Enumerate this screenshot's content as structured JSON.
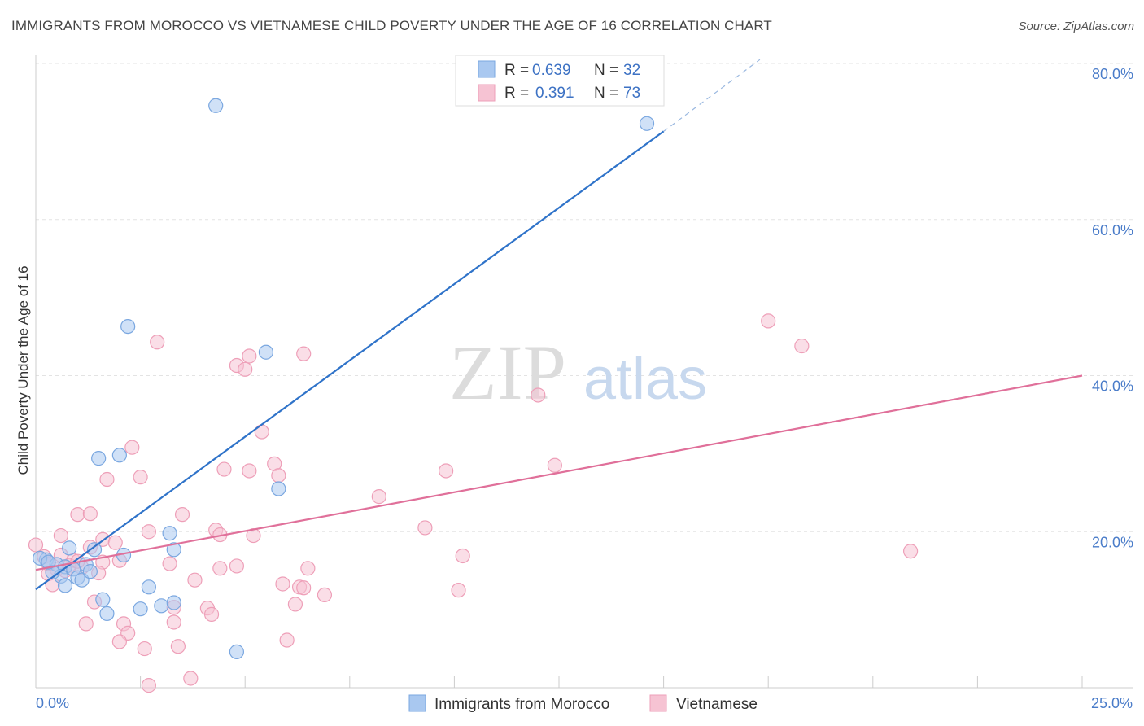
{
  "chart_data": {
    "type": "scatter",
    "title": "IMMIGRANTS FROM MOROCCO VS VIETNAMESE CHILD POVERTY UNDER THE AGE OF 16 CORRELATION CHART",
    "source": "Source: ZipAtlas.com",
    "ylabel": "Child Poverty Under the Age of 16",
    "xlabel": "",
    "xlim": [
      0,
      25
    ],
    "ylim": [
      0,
      80
    ],
    "x_tick_labels": [
      "0.0%",
      "25.0%"
    ],
    "y_ticks": [
      20,
      40,
      60,
      80
    ],
    "y_tick_labels": [
      "20.0%",
      "40.0%",
      "60.0%",
      "80.0%"
    ],
    "grid": true,
    "watermark": [
      "ZIP",
      "atlas"
    ],
    "legend": {
      "entries": [
        {
          "r_label": "R = ",
          "r_value": "0.639",
          "n_label": "N = ",
          "n_value": "32"
        },
        {
          "r_label": "R = ",
          "r_value": "0.391",
          "n_label": "N = ",
          "n_value": "73"
        }
      ]
    },
    "series": [
      {
        "name": "Immigrants from Morocco",
        "color": "#a9c8f0",
        "stroke": "#7aa7e0",
        "line_color": "#2f73c9",
        "trend": {
          "x0": 0,
          "y0": 12.6,
          "x1": 15,
          "y1": 71.3,
          "x_ext": 17.3,
          "y_ext": 80.5
        },
        "points": [
          [
            4.3,
            74.6
          ],
          [
            14.6,
            72.3
          ],
          [
            2.2,
            46.3
          ],
          [
            5.5,
            43.0
          ],
          [
            2.0,
            29.8
          ],
          [
            1.5,
            29.4
          ],
          [
            5.8,
            25.5
          ],
          [
            0.8,
            17.9
          ],
          [
            1.4,
            17.7
          ],
          [
            2.1,
            17.0
          ],
          [
            3.2,
            19.8
          ],
          [
            3.3,
            17.7
          ],
          [
            0.25,
            16.4
          ],
          [
            0.5,
            15.8
          ],
          [
            0.7,
            15.5
          ],
          [
            0.9,
            15.2
          ],
          [
            1.2,
            15.8
          ],
          [
            0.6,
            14.3
          ],
          [
            1.0,
            14.1
          ],
          [
            1.1,
            13.8
          ],
          [
            0.4,
            14.8
          ],
          [
            0.7,
            13.1
          ],
          [
            2.7,
            12.9
          ],
          [
            1.6,
            11.3
          ],
          [
            1.7,
            9.5
          ],
          [
            3.0,
            10.5
          ],
          [
            3.3,
            10.9
          ],
          [
            2.5,
            10.1
          ],
          [
            4.8,
            4.6
          ],
          [
            0.1,
            16.6
          ],
          [
            0.3,
            16.1
          ],
          [
            1.3,
            14.9
          ]
        ]
      },
      {
        "name": "Vietnamese",
        "color": "#f6c3d3",
        "stroke": "#ee9fb8",
        "line_color": "#e0709a",
        "trend": {
          "x0": 0,
          "y0": 15.1,
          "x1": 25,
          "y1": 40.0
        },
        "points": [
          [
            17.5,
            47.0
          ],
          [
            18.3,
            43.8
          ],
          [
            2.9,
            44.3
          ],
          [
            6.4,
            42.8
          ],
          [
            4.8,
            41.3
          ],
          [
            5.0,
            40.8
          ],
          [
            5.1,
            42.5
          ],
          [
            12.0,
            37.5
          ],
          [
            5.4,
            32.8
          ],
          [
            2.3,
            30.8
          ],
          [
            12.4,
            28.5
          ],
          [
            9.8,
            27.8
          ],
          [
            4.5,
            28.0
          ],
          [
            5.1,
            27.8
          ],
          [
            5.7,
            28.7
          ],
          [
            5.8,
            27.2
          ],
          [
            2.5,
            27.0
          ],
          [
            1.7,
            26.7
          ],
          [
            8.2,
            24.5
          ],
          [
            1.0,
            22.2
          ],
          [
            1.3,
            22.3
          ],
          [
            3.5,
            22.2
          ],
          [
            9.3,
            20.5
          ],
          [
            2.7,
            20.0
          ],
          [
            4.3,
            20.2
          ],
          [
            4.4,
            19.6
          ],
          [
            5.2,
            19.5
          ],
          [
            0.6,
            19.5
          ],
          [
            1.6,
            19.0
          ],
          [
            1.9,
            18.6
          ],
          [
            1.3,
            18.0
          ],
          [
            0.0,
            18.3
          ],
          [
            20.9,
            17.5
          ],
          [
            10.2,
            16.9
          ],
          [
            3.2,
            15.9
          ],
          [
            0.9,
            16.3
          ],
          [
            1.6,
            16.1
          ],
          [
            2.0,
            16.3
          ],
          [
            0.5,
            15.2
          ],
          [
            0.8,
            15.7
          ],
          [
            0.3,
            14.6
          ],
          [
            4.4,
            15.3
          ],
          [
            4.8,
            15.6
          ],
          [
            6.5,
            15.3
          ],
          [
            1.1,
            15.4
          ],
          [
            1.5,
            14.7
          ],
          [
            0.4,
            13.2
          ],
          [
            3.8,
            13.8
          ],
          [
            5.9,
            13.3
          ],
          [
            6.3,
            12.9
          ],
          [
            6.4,
            12.8
          ],
          [
            6.9,
            11.9
          ],
          [
            10.1,
            12.5
          ],
          [
            1.4,
            11.0
          ],
          [
            3.3,
            10.3
          ],
          [
            4.1,
            10.2
          ],
          [
            4.2,
            9.4
          ],
          [
            6.2,
            10.7
          ],
          [
            1.2,
            8.2
          ],
          [
            2.1,
            8.2
          ],
          [
            3.3,
            8.4
          ],
          [
            2.2,
            7.0
          ],
          [
            6.0,
            6.1
          ],
          [
            2.0,
            5.9
          ],
          [
            2.6,
            5.0
          ],
          [
            3.4,
            5.3
          ],
          [
            3.7,
            1.2
          ],
          [
            2.7,
            0.3
          ],
          [
            0.2,
            16.8
          ],
          [
            0.6,
            17.0
          ],
          [
            1.0,
            16.2
          ],
          [
            0.3,
            15.9
          ],
          [
            0.7,
            15.0
          ]
        ]
      }
    ]
  },
  "bottom_legend": [
    "Immigrants from Morocco",
    "Vietnamese"
  ]
}
